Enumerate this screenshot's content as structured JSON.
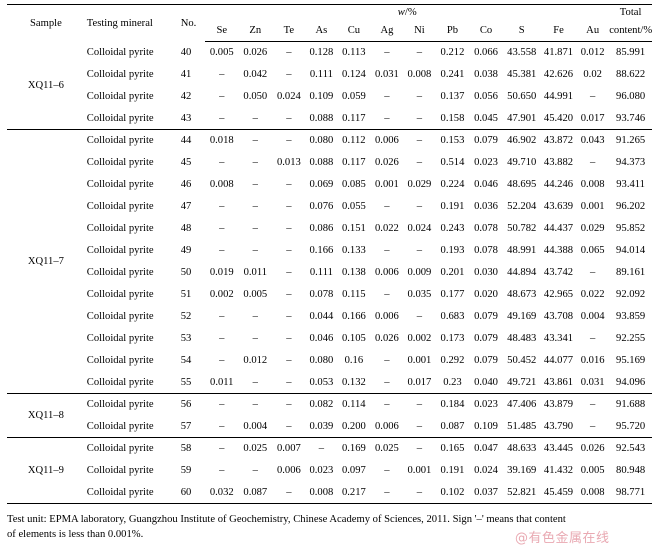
{
  "headers": {
    "sample": "Sample",
    "mineral": "Testing mineral",
    "no": "No.",
    "unit_w": "w",
    "unit_pct": "/%",
    "total_line1": "Total",
    "total_line2": "content/%",
    "elements": [
      "Se",
      "Zn",
      "Te",
      "As",
      "Cu",
      "Ag",
      "Ni",
      "Pb",
      "Co",
      "S",
      "Fe",
      "Au"
    ]
  },
  "groups": [
    {
      "sample": "XQ11–6",
      "rows": [
        {
          "mineral": "Colloidal pyrite",
          "no": "40",
          "vals": [
            "0.005",
            "0.026",
            "–",
            "0.128",
            "0.113",
            "–",
            "–",
            "0.212",
            "0.066",
            "43.558",
            "41.871",
            "0.012"
          ],
          "total": "85.991"
        },
        {
          "mineral": "Colloidal pyrite",
          "no": "41",
          "vals": [
            "–",
            "0.042",
            "–",
            "0.111",
            "0.124",
            "0.031",
            "0.008",
            "0.241",
            "0.038",
            "45.381",
            "42.626",
            "0.02"
          ],
          "total": "88.622"
        },
        {
          "mineral": "Colloidal pyrite",
          "no": "42",
          "vals": [
            "–",
            "0.050",
            "0.024",
            "0.109",
            "0.059",
            "–",
            "–",
            "0.137",
            "0.056",
            "50.650",
            "44.991",
            "–"
          ],
          "total": "96.080"
        },
        {
          "mineral": "Colloidal pyrite",
          "no": "43",
          "vals": [
            "–",
            "–",
            "–",
            "0.088",
            "0.117",
            "–",
            "–",
            "0.158",
            "0.045",
            "47.901",
            "45.420",
            "0.017"
          ],
          "total": "93.746"
        }
      ]
    },
    {
      "sample": "XQ11–7",
      "rows": [
        {
          "mineral": "Colloidal pyrite",
          "no": "44",
          "vals": [
            "0.018",
            "–",
            "–",
            "0.080",
            "0.112",
            "0.006",
            "–",
            "0.153",
            "0.079",
            "46.902",
            "43.872",
            "0.043"
          ],
          "total": "91.265"
        },
        {
          "mineral": "Colloidal pyrite",
          "no": "45",
          "vals": [
            "–",
            "–",
            "0.013",
            "0.088",
            "0.117",
            "0.026",
            "–",
            "0.514",
            "0.023",
            "49.710",
            "43.882",
            "–"
          ],
          "total": "94.373"
        },
        {
          "mineral": "Colloidal pyrite",
          "no": "46",
          "vals": [
            "0.008",
            "–",
            "–",
            "0.069",
            "0.085",
            "0.001",
            "0.029",
            "0.224",
            "0.046",
            "48.695",
            "44.246",
            "0.008"
          ],
          "total": "93.411"
        },
        {
          "mineral": "Colloidal pyrite",
          "no": "47",
          "vals": [
            "–",
            "–",
            "–",
            "0.076",
            "0.055",
            "–",
            "–",
            "0.191",
            "0.036",
            "52.204",
            "43.639",
            "0.001"
          ],
          "total": "96.202"
        },
        {
          "mineral": "Colloidal pyrite",
          "no": "48",
          "vals": [
            "–",
            "–",
            "–",
            "0.086",
            "0.151",
            "0.022",
            "0.024",
            "0.243",
            "0.078",
            "50.782",
            "44.437",
            "0.029"
          ],
          "total": "95.852"
        },
        {
          "mineral": "Colloidal pyrite",
          "no": "49",
          "vals": [
            "–",
            "–",
            "–",
            "0.166",
            "0.133",
            "–",
            "–",
            "0.193",
            "0.078",
            "48.991",
            "44.388",
            "0.065"
          ],
          "total": "94.014"
        },
        {
          "mineral": "Colloidal pyrite",
          "no": "50",
          "vals": [
            "0.019",
            "0.011",
            "–",
            "0.111",
            "0.138",
            "0.006",
            "0.009",
            "0.201",
            "0.030",
            "44.894",
            "43.742",
            "–"
          ],
          "total": "89.161"
        },
        {
          "mineral": "Colloidal pyrite",
          "no": "51",
          "vals": [
            "0.002",
            "0.005",
            "–",
            "0.078",
            "0.115",
            "–",
            "0.035",
            "0.177",
            "0.020",
            "48.673",
            "42.965",
            "0.022"
          ],
          "total": "92.092"
        },
        {
          "mineral": "Colloidal pyrite",
          "no": "52",
          "vals": [
            "–",
            "–",
            "–",
            "0.044",
            "0.166",
            "0.006",
            "–",
            "0.683",
            "0.079",
            "49.169",
            "43.708",
            "0.004"
          ],
          "total": "93.859"
        },
        {
          "mineral": "Colloidal pyrite",
          "no": "53",
          "vals": [
            "–",
            "–",
            "–",
            "0.046",
            "0.105",
            "0.026",
            "0.002",
            "0.173",
            "0.079",
            "48.483",
            "43.341",
            "–"
          ],
          "total": "92.255"
        },
        {
          "mineral": "Colloidal pyrite",
          "no": "54",
          "vals": [
            "–",
            "0.012",
            "–",
            "0.080",
            "0.16",
            "–",
            "0.001",
            "0.292",
            "0.079",
            "50.452",
            "44.077",
            "0.016"
          ],
          "total": "95.169"
        },
        {
          "mineral": "Colloidal pyrite",
          "no": "55",
          "vals": [
            "0.011",
            "–",
            "–",
            "0.053",
            "0.132",
            "–",
            "0.017",
            "0.23",
            "0.040",
            "49.721",
            "43.861",
            "0.031"
          ],
          "total": "94.096"
        }
      ]
    },
    {
      "sample": "XQ11–8",
      "rows": [
        {
          "mineral": "Colloidal pyrite",
          "no": "56",
          "vals": [
            "–",
            "–",
            "–",
            "0.082",
            "0.114",
            "–",
            "–",
            "0.184",
            "0.023",
            "47.406",
            "43.879",
            "–"
          ],
          "total": "91.688"
        },
        {
          "mineral": "Colloidal pyrite",
          "no": "57",
          "vals": [
            "–",
            "0.004",
            "–",
            "0.039",
            "0.200",
            "0.006",
            "–",
            "0.087",
            "0.109",
            "51.485",
            "43.790",
            "–"
          ],
          "total": "95.720"
        }
      ]
    },
    {
      "sample": "XQ11–9",
      "rows": [
        {
          "mineral": "Colloidal pyrite",
          "no": "58",
          "vals": [
            "–",
            "0.025",
            "0.007",
            "–",
            "0.169",
            "0.025",
            "–",
            "0.165",
            "0.047",
            "48.633",
            "43.445",
            "0.026"
          ],
          "total": "92.543"
        },
        {
          "mineral": "Colloidal pyrite",
          "no": "59",
          "vals": [
            "–",
            "–",
            "0.006",
            "0.023",
            "0.097",
            "–",
            "0.001",
            "0.191",
            "0.024",
            "39.169",
            "41.432",
            "0.005"
          ],
          "total": "80.948"
        },
        {
          "mineral": "Colloidal pyrite",
          "no": "60",
          "vals": [
            "0.032",
            "0.087",
            "–",
            "0.008",
            "0.217",
            "–",
            "–",
            "0.102",
            "0.037",
            "52.821",
            "45.459",
            "0.008"
          ],
          "total": "98.771"
        }
      ]
    }
  ],
  "footnote": {
    "line1": "Test unit: EPMA laboratory, Guangzhou Institute of Geochemistry, Chinese Academy of Sciences, 2011. Sign '–' means that content",
    "line2": "of elements is less than 0.001%."
  },
  "watermark": {
    "symbol": "@",
    "text": "有色金属在线"
  }
}
